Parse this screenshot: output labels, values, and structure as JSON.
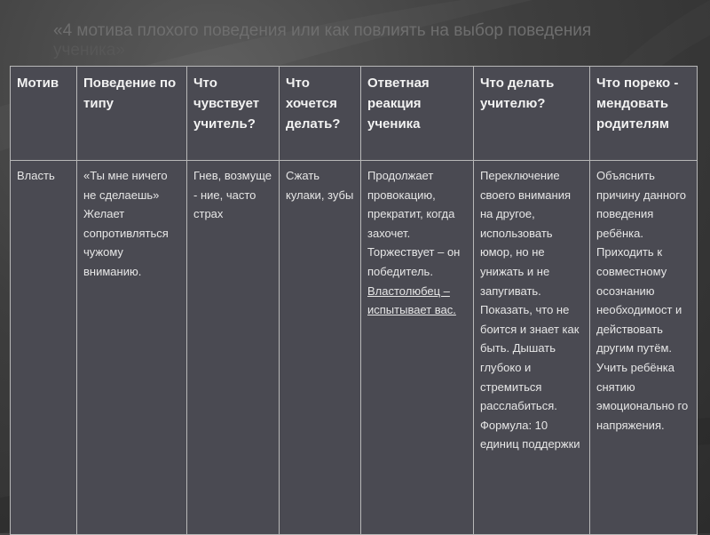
{
  "title": {
    "line1": "«4 мотива плохого поведения или как повлиять на выбор поведения",
    "line2": "ученика»"
  },
  "table": {
    "headers": [
      "Мотив",
      "Поведение по типу",
      "Что чувствует учитель?",
      "Что хочется делать?",
      "Ответная реакция ученика",
      "Что делать учителю?",
      "Что пореко - мендовать родителям"
    ],
    "row": {
      "motive": "Власть",
      "behavior": "«Ты мне ничего не сделаешь» Желает сопротивляться чужому вниманию.",
      "teacher_feels": "Гнев, возмуще - ние, часто страх",
      "wants_to_do": "Сжать кулаки, зубы",
      "response_main": "Продолжает провокацию, прекратит, когда захочет. Торжествует – он победитель.",
      "response_underlined": "Властолюбец – испытывает вас.",
      "teacher_action": "Переключение своего внимания на другое, использовать юмор, но не унижать и не запугивать. Показать, что не боится и знает как быть. Дышать глубоко и стремиться расслабиться. Формула: 10 единиц поддержки",
      "parents_advice": "Объяснить причину данного поведения ребёнка. Приходить к совместному осознанию необходимост и действовать другим путём. Учить ребёнка снятию эмоционально го напряжения."
    }
  },
  "colors": {
    "background": "#3e3e3e",
    "table_fill": "#4a4a52",
    "border": "#b8b8b8",
    "text": "#f2f2f2",
    "title_text": "#6e6e6e"
  }
}
